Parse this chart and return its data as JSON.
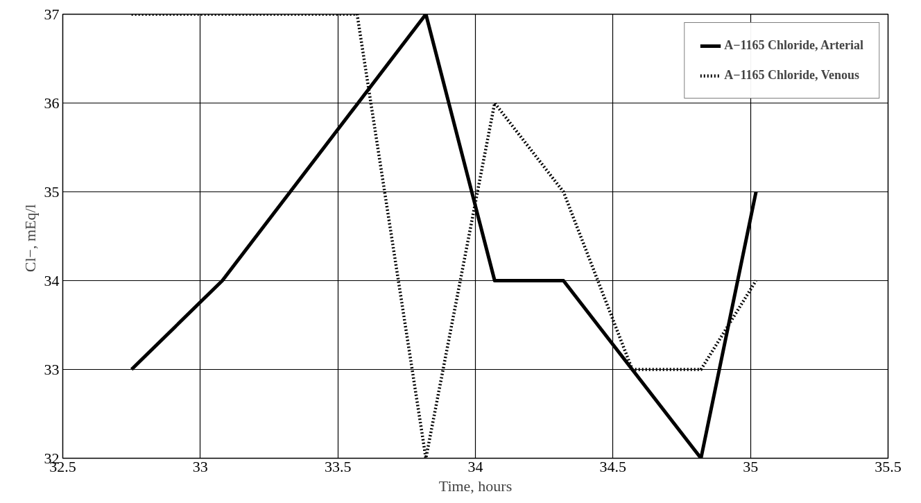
{
  "chart_data": {
    "type": "line",
    "xlabel": "Time, hours",
    "ylabel": "Cl−,  mEq/l",
    "xlim": [
      32.5,
      35.5
    ],
    "ylim": [
      32,
      37
    ],
    "xticks": [
      32.5,
      33,
      33.5,
      34,
      34.5,
      35,
      35.5
    ],
    "yticks": [
      32,
      33,
      34,
      35,
      36,
      37
    ],
    "grid": true,
    "legend": "top right",
    "marker": "none",
    "series": [
      {
        "name": "A−1165 Chloride, Arterial",
        "color": "#000000",
        "line_style": "solid",
        "x": [
          32.75,
          33.08,
          33.82,
          34.07,
          34.32,
          34.82,
          35.02
        ],
        "values": [
          33,
          34,
          37,
          34,
          34,
          32,
          35
        ]
      },
      {
        "name": "A−1165 Chloride, Venous",
        "color": "#000000",
        "line_style": "dotted",
        "x": [
          32.75,
          33.57,
          33.82,
          34.07,
          34.32,
          34.57,
          34.82,
          35.02
        ],
        "values": [
          37,
          37,
          32,
          36,
          35,
          33,
          33,
          34
        ]
      }
    ]
  }
}
